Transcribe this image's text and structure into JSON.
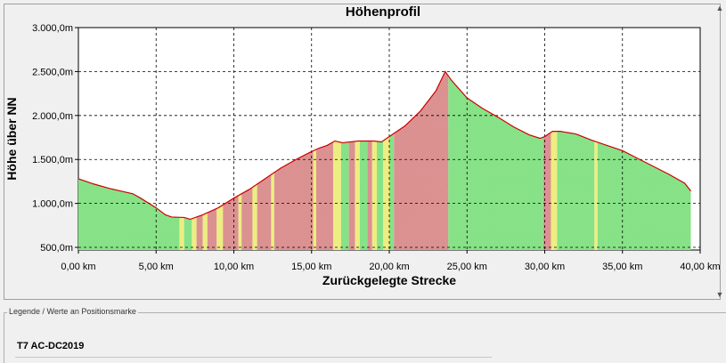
{
  "chart_data": {
    "type": "area",
    "title": "Höhenprofil",
    "xlabel": "Zurückgelegte Strecke",
    "ylabel": "Höhe über NN",
    "xlim": [
      0,
      40
    ],
    "ylim": [
      470,
      3000
    ],
    "x_ticks": [
      0,
      5,
      10,
      15,
      20,
      25,
      30,
      35,
      40
    ],
    "x_tick_labels": [
      "0,00 km",
      "5,00 km",
      "10,00 km",
      "15,00 km",
      "20,00 km",
      "25,00 km",
      "30,00 km",
      "35,00 km",
      "40,00 km"
    ],
    "y_ticks": [
      500,
      1000,
      1500,
      2000,
      2500,
      3000
    ],
    "y_tick_labels": [
      "500,0m",
      "1.000,0m",
      "1.500,0m",
      "2.000,0m",
      "2.500,0m",
      "3.000,0m"
    ],
    "grid": true,
    "x": [
      0,
      1,
      2,
      3,
      3.5,
      4,
      5,
      5.6,
      6,
      6.8,
      7.2,
      8,
      9,
      10,
      11,
      12,
      13,
      14,
      15,
      15.5,
      16,
      16.5,
      17,
      18,
      19,
      19.5,
      20,
      21,
      22,
      23,
      23.6,
      24,
      25,
      26,
      27,
      28,
      29,
      29.7,
      30,
      30.5,
      31,
      32,
      33,
      34,
      35,
      36,
      37,
      38,
      39,
      39.4
    ],
    "y": [
      1280,
      1220,
      1170,
      1130,
      1110,
      1060,
      950,
      870,
      845,
      840,
      820,
      870,
      950,
      1060,
      1160,
      1280,
      1400,
      1500,
      1590,
      1630,
      1660,
      1710,
      1690,
      1710,
      1710,
      1700,
      1760,
      1880,
      2050,
      2280,
      2500,
      2400,
      2200,
      2080,
      1980,
      1870,
      1780,
      1740,
      1760,
      1820,
      1820,
      1790,
      1720,
      1660,
      1600,
      1510,
      1420,
      1330,
      1230,
      1140
    ],
    "color_bands": [
      {
        "start": 0,
        "end": 6.5,
        "color": "green"
      },
      {
        "start": 6.5,
        "end": 6.8,
        "color": "yellow"
      },
      {
        "start": 6.8,
        "end": 7.3,
        "color": "green"
      },
      {
        "start": 7.3,
        "end": 7.6,
        "color": "yellow"
      },
      {
        "start": 7.6,
        "end": 8.0,
        "color": "red"
      },
      {
        "start": 8.0,
        "end": 8.3,
        "color": "yellow"
      },
      {
        "start": 8.3,
        "end": 8.9,
        "color": "red"
      },
      {
        "start": 8.9,
        "end": 9.3,
        "color": "yellow"
      },
      {
        "start": 9.3,
        "end": 10.3,
        "color": "red"
      },
      {
        "start": 10.3,
        "end": 10.5,
        "color": "yellow"
      },
      {
        "start": 10.5,
        "end": 11.2,
        "color": "red"
      },
      {
        "start": 11.2,
        "end": 11.5,
        "color": "yellow"
      },
      {
        "start": 11.5,
        "end": 12.4,
        "color": "red"
      },
      {
        "start": 12.4,
        "end": 12.6,
        "color": "yellow"
      },
      {
        "start": 12.6,
        "end": 15.1,
        "color": "red"
      },
      {
        "start": 15.1,
        "end": 15.3,
        "color": "yellow"
      },
      {
        "start": 15.3,
        "end": 16.4,
        "color": "red"
      },
      {
        "start": 16.4,
        "end": 16.9,
        "color": "yellow"
      },
      {
        "start": 16.9,
        "end": 17.4,
        "color": "green"
      },
      {
        "start": 17.4,
        "end": 17.8,
        "color": "red"
      },
      {
        "start": 17.8,
        "end": 18.1,
        "color": "yellow"
      },
      {
        "start": 18.1,
        "end": 18.6,
        "color": "green"
      },
      {
        "start": 18.6,
        "end": 18.9,
        "color": "red"
      },
      {
        "start": 18.9,
        "end": 19.2,
        "color": "yellow"
      },
      {
        "start": 19.2,
        "end": 19.6,
        "color": "green"
      },
      {
        "start": 19.6,
        "end": 20.0,
        "color": "yellow"
      },
      {
        "start": 20.0,
        "end": 20.3,
        "color": "green"
      },
      {
        "start": 20.3,
        "end": 23.8,
        "color": "red"
      },
      {
        "start": 23.8,
        "end": 29.9,
        "color": "green"
      },
      {
        "start": 29.9,
        "end": 30.4,
        "color": "red"
      },
      {
        "start": 30.4,
        "end": 30.8,
        "color": "yellow"
      },
      {
        "start": 30.8,
        "end": 33.2,
        "color": "green"
      },
      {
        "start": 33.2,
        "end": 33.4,
        "color": "yellow"
      },
      {
        "start": 33.4,
        "end": 39.4,
        "color": "green"
      }
    ],
    "colors": {
      "green": "#7fe07f",
      "red": "#d98a8a",
      "yellow": "#ecec7a",
      "line": "#cc0000"
    }
  },
  "legend": {
    "caption": "Legende / Werte an Positionsmarke",
    "track_name": "T7 AC-DC2019"
  }
}
